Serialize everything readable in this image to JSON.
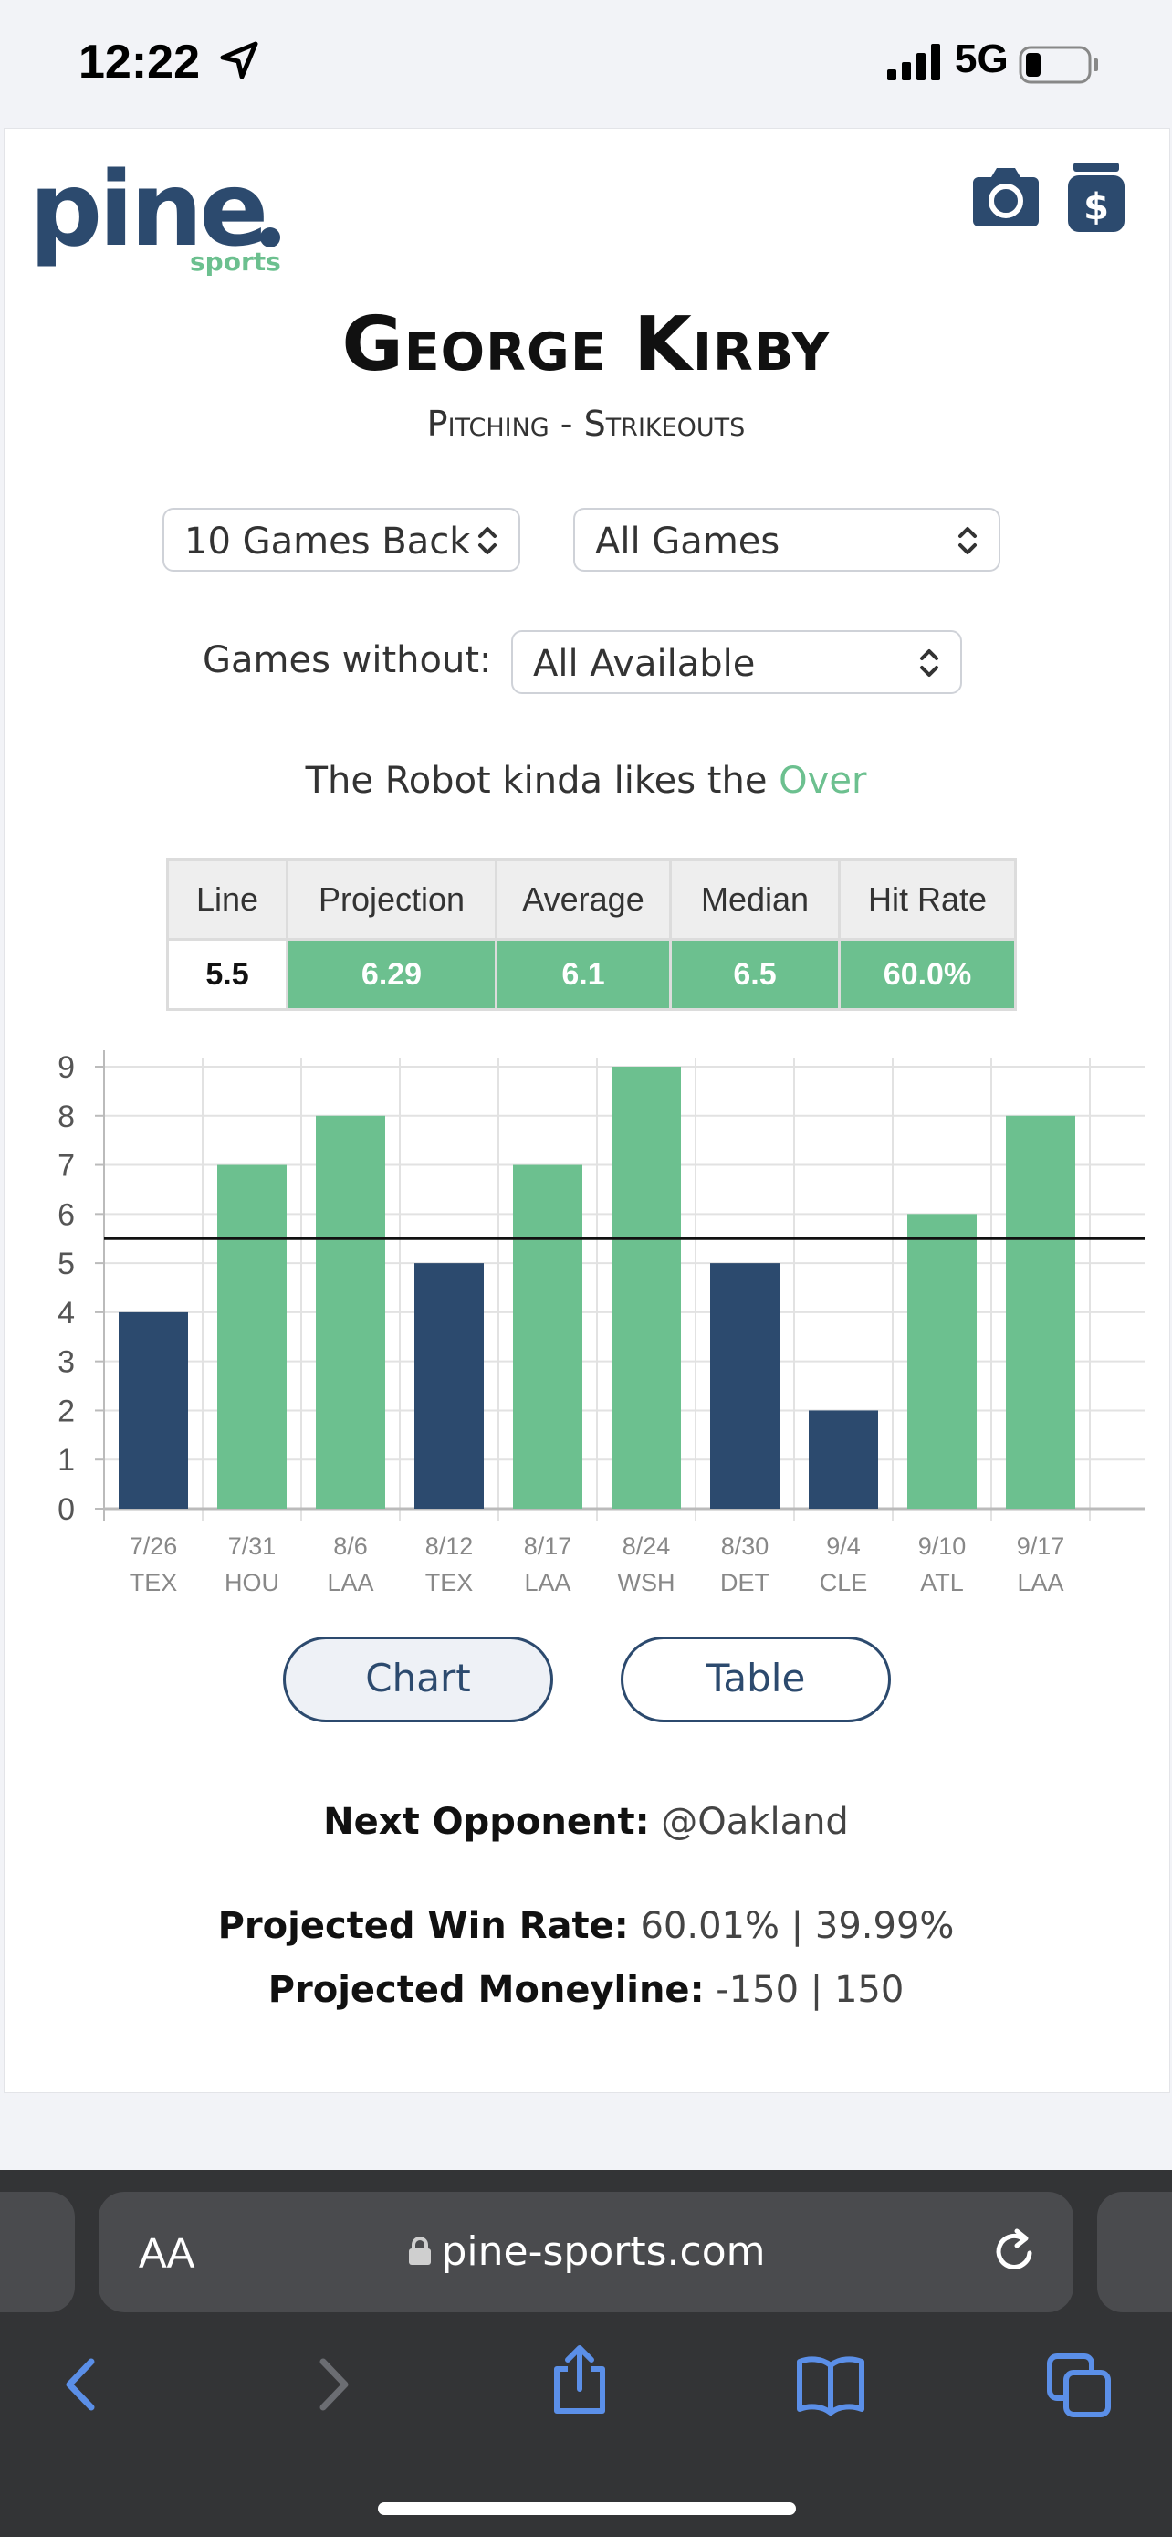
{
  "status_bar": {
    "time": "12:22",
    "network": "5G"
  },
  "brand": {
    "logo_main": "pine",
    "logo_sub": "sports",
    "color_navy": "#2c4a6e",
    "color_green": "#6cc08f"
  },
  "header_icons": [
    "camera-icon",
    "money-jar-icon"
  ],
  "player": {
    "name": "George Kirby",
    "subtitle": "Pitching - Strikeouts"
  },
  "filters": {
    "games_back": "10 Games Back",
    "game_type": "All Games",
    "games_without_label": "Games without:",
    "games_without_value": "All Available"
  },
  "robot": {
    "prefix": "The Robot kinda likes the ",
    "pick": "Over"
  },
  "stats": {
    "headers": [
      "Line",
      "Projection",
      "Average",
      "Median",
      "Hit Rate"
    ],
    "values": [
      "5.5",
      "6.29",
      "6.1",
      "6.5",
      "60.0%"
    ]
  },
  "chart_data": {
    "type": "bar",
    "categories": [
      "7/26 TEX",
      "7/31 HOU",
      "8/6 LAA",
      "8/12 TEX",
      "8/17 LAA",
      "8/24 WSH",
      "8/30 DET",
      "9/4 CLE",
      "9/10 ATL",
      "9/17 LAA"
    ],
    "dates": [
      "7/26",
      "7/31",
      "8/6",
      "8/12",
      "8/17",
      "8/24",
      "8/30",
      "9/4",
      "9/10",
      "9/17"
    ],
    "opponents": [
      "TEX",
      "HOU",
      "LAA",
      "TEX",
      "LAA",
      "WSH",
      "DET",
      "CLE",
      "ATL",
      "LAA"
    ],
    "values": [
      4,
      7,
      8,
      5,
      7,
      9,
      5,
      2,
      6,
      8
    ],
    "line": 5.5,
    "ylim": [
      0,
      9
    ],
    "yticks": [
      0,
      1,
      2,
      3,
      4,
      5,
      6,
      7,
      8,
      9
    ],
    "colors": {
      "over": "#6cc08f",
      "under": "#2c4a6e"
    },
    "grid": true
  },
  "view_toggle": {
    "chart_label": "Chart",
    "table_label": "Table",
    "active": "Chart"
  },
  "next_opponent": {
    "label": "Next Opponent:",
    "value": " @Oakland"
  },
  "win_rate": {
    "label": "Projected Win Rate:",
    "value": " 60.01% | 39.99%"
  },
  "moneyline": {
    "label": "Projected Moneyline:",
    "value": " -150 | 150"
  },
  "browser": {
    "aa_label": "AA",
    "url": "pine-sports.com"
  }
}
